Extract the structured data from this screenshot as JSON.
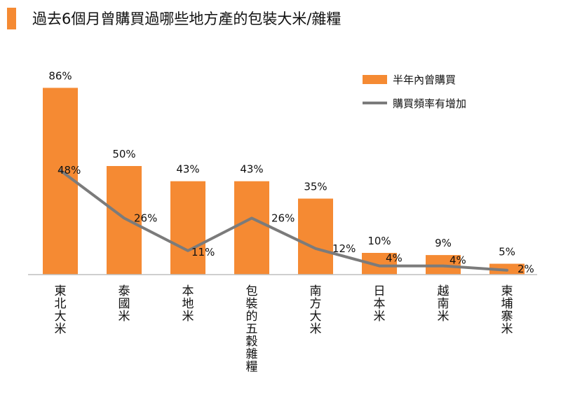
{
  "chart_data": {
    "type": "bar",
    "title": "過去6個月曾購買過哪些地方產的包裝大米/雜糧",
    "categories": [
      "東北大米",
      "泰國米",
      "本地米",
      "包裝的五穀雜糧",
      "南方大米",
      "日本米",
      "越南米",
      "柬埔寨米"
    ],
    "series": [
      {
        "name": "半年內曾購買",
        "kind": "bar",
        "values": [
          86,
          50,
          43,
          43,
          35,
          10,
          9,
          5
        ],
        "labels": [
          "86%",
          "50%",
          "43%",
          "43%",
          "35%",
          "10%",
          "9%",
          "5%"
        ]
      },
      {
        "name": "購買頻率有增加",
        "kind": "line",
        "values": [
          48,
          26,
          11,
          26,
          12,
          4,
          4,
          2
        ],
        "labels": [
          "48%",
          "26%",
          "11%",
          "26%",
          "12%",
          "4%",
          "4%",
          "2%"
        ]
      }
    ],
    "ylim": [
      0,
      100
    ],
    "grid": false,
    "legend_position": "top-right",
    "colors": {
      "bar": "#f58a33",
      "line": "#7b7b7b",
      "title_bar": "#f58a33"
    }
  }
}
